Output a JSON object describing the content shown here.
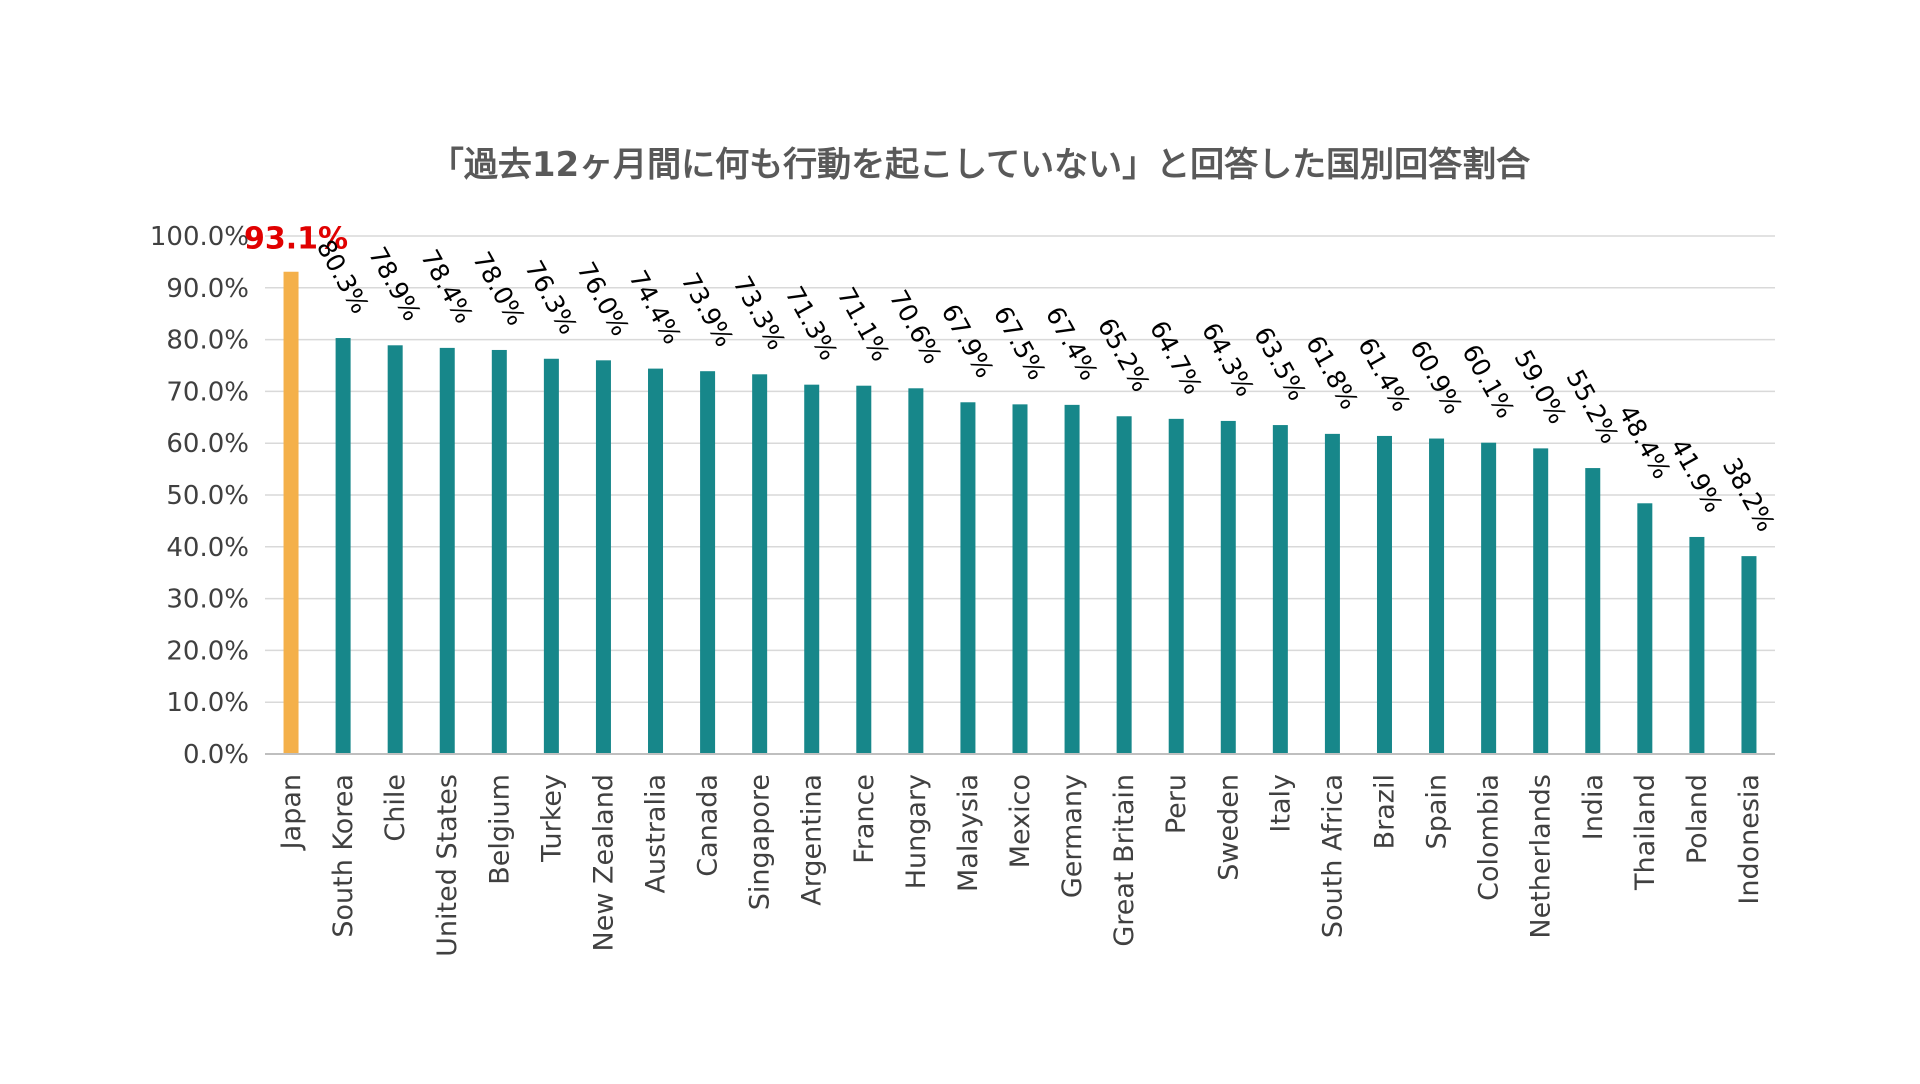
{
  "chart_data": {
    "type": "bar",
    "title": "「過去12ヶ月間に何も行動を起こしていない」と回答した国別回答割合",
    "xlabel": "",
    "ylabel": "",
    "ylim": [
      0,
      100
    ],
    "y_ticks": [
      "0.0%",
      "10.0%",
      "20.0%",
      "30.0%",
      "40.0%",
      "50.0%",
      "60.0%",
      "70.0%",
      "80.0%",
      "90.0%",
      "100.0%"
    ],
    "grid": true,
    "categories": [
      "Japan",
      "South Korea",
      "Chile",
      "United States",
      "Belgium",
      "Turkey",
      "New Zealand",
      "Australia",
      "Canada",
      "Singapore",
      "Argentina",
      "France",
      "Hungary",
      "Malaysia",
      "Mexico",
      "Germany",
      "Great Britain",
      "Peru",
      "Sweden",
      "Italy",
      "South Africa",
      "Brazil",
      "Spain",
      "Colombia",
      "Netherlands",
      "India",
      "Thailand",
      "Poland",
      "Indonesia"
    ],
    "values": [
      93.1,
      80.3,
      78.9,
      78.4,
      78.0,
      76.3,
      76.0,
      74.4,
      73.9,
      73.3,
      71.3,
      71.1,
      70.6,
      67.9,
      67.5,
      67.4,
      65.2,
      64.7,
      64.3,
      63.5,
      61.8,
      61.4,
      60.9,
      60.1,
      59.0,
      55.2,
      48.4,
      41.9,
      38.2
    ],
    "value_labels": [
      "93.1%",
      "80.3%",
      "78.9%",
      "78.4%",
      "78.0%",
      "76.3%",
      "76.0%",
      "74.4%",
      "73.9%",
      "73.3%",
      "71.3%",
      "71.1%",
      "70.6%",
      "67.9%",
      "67.5%",
      "67.4%",
      "65.2%",
      "64.7%",
      "64.3%",
      "63.5%",
      "61.8%",
      "61.4%",
      "60.9%",
      "60.1%",
      "59.0%",
      "55.2%",
      "48.4%",
      "41.9%",
      "38.2%"
    ],
    "highlight_category": "Japan",
    "colors": {
      "bar": "#17878A",
      "highlight_bar": "#F4B04A",
      "highlight_label": "#E00000",
      "grid": "#D9D9D9",
      "axis": "#BFBFBF"
    }
  }
}
